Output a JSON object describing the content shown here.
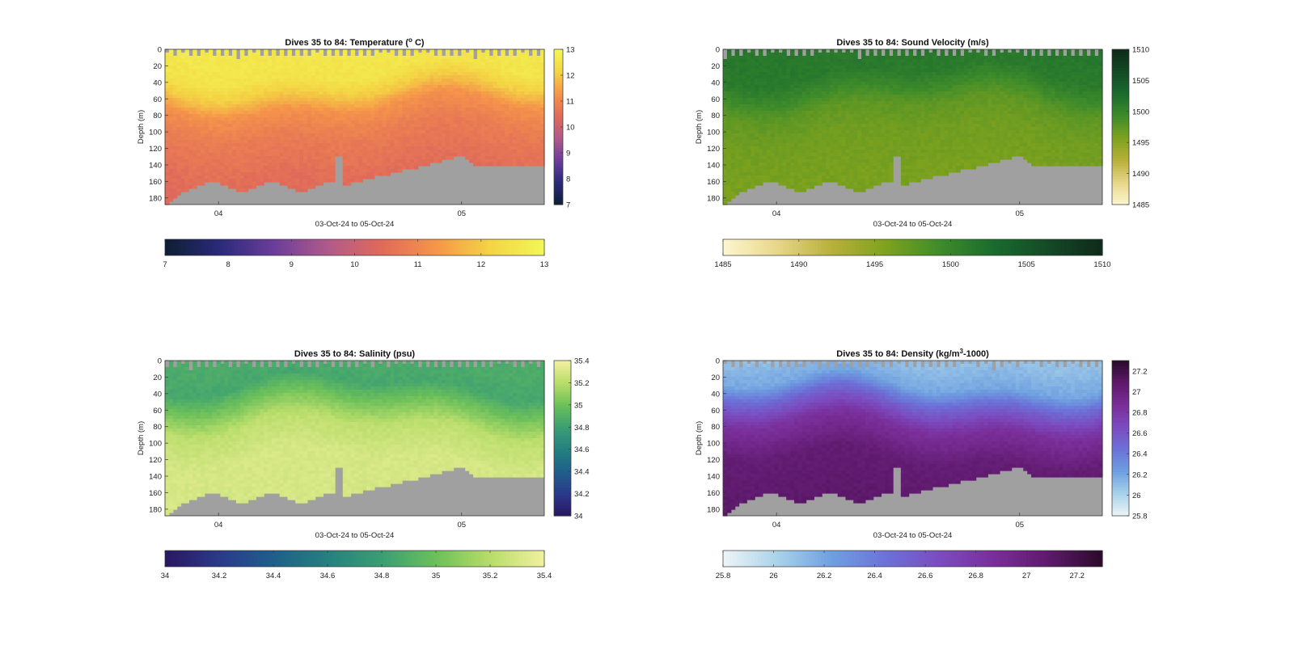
{
  "chart_data": [
    {
      "type": "heatmap",
      "title": "Dives 35 to 84: Temperature (",
      "title_sup": "o",
      "title_end": " C)",
      "xlabel": "03-Oct-24 to 05-Oct-24",
      "ylabel": "Depth (m)",
      "x_ticks": [
        {
          "label": "04",
          "t": 4.0
        },
        {
          "label": "05",
          "t": 5.0
        }
      ],
      "xlim": [
        3.78,
        5.34
      ],
      "y_ticks": [
        0,
        20,
        40,
        60,
        80,
        100,
        120,
        140,
        160,
        180
      ],
      "ylim": [
        0,
        188
      ],
      "clim": [
        7,
        13
      ],
      "cbar_ticks": [
        7,
        8,
        9,
        10,
        11,
        12,
        13
      ],
      "cbar_ticks_h": [
        7,
        8,
        9,
        10,
        11,
        12,
        13
      ],
      "colormap": [
        "#0d1f33",
        "#2a2a7a",
        "#6a3d9a",
        "#b05a8a",
        "#e06a5a",
        "#f5954a",
        "#f4d444",
        "#f2f856"
      ],
      "profile": [
        [
          0,
          12.6
        ],
        [
          30,
          12.5
        ],
        [
          50,
          12.0
        ],
        [
          70,
          11.2
        ],
        [
          100,
          10.8
        ],
        [
          150,
          10.5
        ],
        [
          188,
          10.4
        ]
      ],
      "no_data_color": "#a0a0a0"
    },
    {
      "type": "heatmap",
      "title": "Dives 35 to 84: Sound Velocity (m/s)",
      "xlabel": "03-Oct-24 to 05-Oct-24",
      "ylabel": "Depth (m)",
      "x_ticks": [
        {
          "label": "04",
          "t": 4.0
        },
        {
          "label": "05",
          "t": 5.0
        }
      ],
      "xlim": [
        3.78,
        5.34
      ],
      "y_ticks": [
        0,
        20,
        40,
        60,
        80,
        100,
        120,
        140,
        160,
        180
      ],
      "ylim": [
        0,
        188
      ],
      "clim": [
        1485,
        1510
      ],
      "cbar_ticks": [
        1485,
        1490,
        1495,
        1500,
        1505,
        1510
      ],
      "cbar_ticks_h": [
        1485,
        1490,
        1495,
        1500,
        1505,
        1510
      ],
      "colormap": [
        "#fdf7d0",
        "#e8d68a",
        "#b8b03a",
        "#7ea21e",
        "#3f8c2a",
        "#1a6b2e",
        "#144a26",
        "#0f2a1a"
      ],
      "profile": [
        [
          0,
          1501.5
        ],
        [
          30,
          1501.2
        ],
        [
          50,
          1499.5
        ],
        [
          70,
          1497.5
        ],
        [
          100,
          1496.5
        ],
        [
          150,
          1496.0
        ],
        [
          188,
          1496.0
        ]
      ],
      "no_data_color": "#a0a0a0"
    },
    {
      "type": "heatmap",
      "title": "Dives 35 to 84: Salinity (psu)",
      "xlabel": "03-Oct-24 to 05-Oct-24",
      "ylabel": "Depth (m)",
      "x_ticks": [
        {
          "label": "04",
          "t": 4.0
        },
        {
          "label": "05",
          "t": 5.0
        }
      ],
      "xlim": [
        3.78,
        5.34
      ],
      "y_ticks": [
        0,
        20,
        40,
        60,
        80,
        100,
        120,
        140,
        160,
        180
      ],
      "ylim": [
        0,
        188
      ],
      "clim": [
        34,
        35.4
      ],
      "cbar_ticks": [
        34,
        34.2,
        34.4,
        34.6,
        34.8,
        35,
        35.2,
        35.4
      ],
      "cbar_ticks_h": [
        34,
        34.2,
        34.4,
        34.6,
        34.8,
        35,
        35.2,
        35.4
      ],
      "colormap": [
        "#2a1760",
        "#2a3a8a",
        "#1f5f8a",
        "#26807f",
        "#3a9e73",
        "#6cc05a",
        "#b8dd6a",
        "#f2f0a0"
      ],
      "profile": [
        [
          0,
          34.88
        ],
        [
          30,
          34.85
        ],
        [
          50,
          35.0
        ],
        [
          80,
          35.22
        ],
        [
          120,
          35.3
        ],
        [
          188,
          35.3
        ]
      ],
      "no_data_color": "#a0a0a0"
    },
    {
      "type": "heatmap",
      "title": "Dives 35 to 84: Density (kg/m",
      "title_sup": "3",
      "title_end": "-1000)",
      "xlabel": "03-Oct-24 to 05-Oct-24",
      "ylabel": "Depth (m)",
      "x_ticks": [
        {
          "label": "04",
          "t": 4.0
        },
        {
          "label": "05",
          "t": 5.0
        }
      ],
      "xlim": [
        3.78,
        5.34
      ],
      "y_ticks": [
        0,
        20,
        40,
        60,
        80,
        100,
        120,
        140,
        160,
        180
      ],
      "ylim": [
        0,
        188
      ],
      "clim": [
        25.8,
        27.3
      ],
      "cbar_ticks": [
        25.8,
        26,
        26.2,
        26.4,
        26.6,
        26.8,
        27,
        27.2
      ],
      "cbar_ticks_h": [
        25.8,
        26,
        26.2,
        26.4,
        26.6,
        26.8,
        27,
        27.2
      ],
      "colormap": [
        "#eef5f7",
        "#a9d3ea",
        "#6fa0e0",
        "#6c72d8",
        "#7b4cc0",
        "#7a2e99",
        "#5e1a6c",
        "#2a0a2a"
      ],
      "profile": [
        [
          0,
          26.1
        ],
        [
          30,
          26.2
        ],
        [
          50,
          26.5
        ],
        [
          80,
          26.85
        ],
        [
          120,
          27.05
        ],
        [
          188,
          27.1
        ]
      ],
      "no_data_color": "#a0a0a0"
    }
  ]
}
